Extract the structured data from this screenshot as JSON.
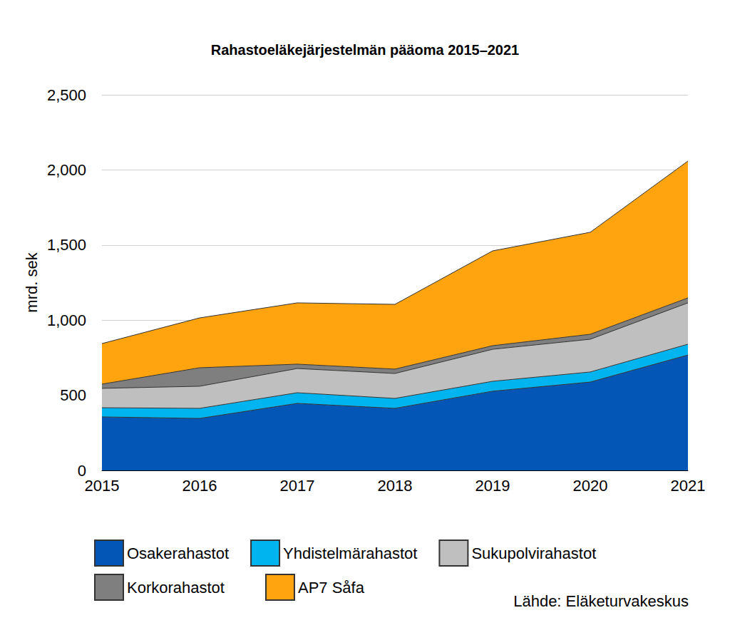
{
  "chart_data": {
    "type": "area",
    "title": "Rahastoeläkejärjestelmän pääoma 2015–2021",
    "y_label": "mrd. sek",
    "source": "Lähde: Eläketurvakeskus",
    "categories": [
      "2015",
      "2016",
      "2017",
      "2018",
      "2019",
      "2020",
      "2021"
    ],
    "series": [
      {
        "name": "Osakerahastot",
        "color": "#0356b5",
        "values": [
          356,
          346,
          446,
          413,
          527,
          588,
          768
        ]
      },
      {
        "name": "Yhdistelmärahastot",
        "color": "#00b4f0",
        "values": [
          61,
          67,
          71,
          66,
          66,
          67,
          72
        ]
      },
      {
        "name": "Sukupolvirahastot",
        "color": "#bfbfbf",
        "values": [
          129,
          147,
          161,
          166,
          213,
          218,
          275
        ]
      },
      {
        "name": "Korkorahastot",
        "color": "#7f7f7f",
        "values": [
          28,
          123,
          29,
          29,
          24,
          33,
          33
        ]
      },
      {
        "name": "AP7 Såfa",
        "color": "#ffa30f",
        "values": [
          270,
          332,
          408,
          431,
          631,
          679,
          911
        ]
      }
    ],
    "ylim": [
      0,
      2500
    ],
    "yticks": [
      0,
      500,
      1000,
      1500,
      2000,
      2500
    ],
    "stacked": true,
    "grid": true,
    "legend": "bottom"
  }
}
